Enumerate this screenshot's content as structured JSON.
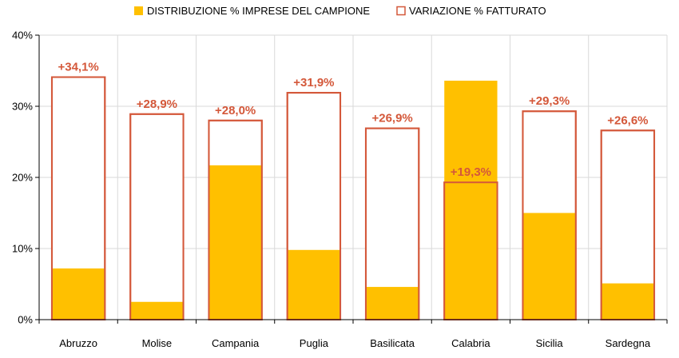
{
  "chart_data": {
    "type": "bar",
    "categories": [
      "Abruzzo",
      "Molise",
      "Campania",
      "Puglia",
      "Basilicata",
      "Calabria",
      "Sicilia",
      "Sardegna"
    ],
    "series": [
      {
        "name": "DISTRIBUZIONE % IMPRESE DEL CAMPIONE",
        "values": [
          7.2,
          2.5,
          21.7,
          9.8,
          4.6,
          33.6,
          15.0,
          5.1
        ],
        "color": "#FFC000"
      },
      {
        "name": "VARIAZIONE % FATTURATO",
        "values": [
          34.1,
          28.9,
          28.0,
          31.9,
          26.9,
          19.3,
          29.3,
          26.6
        ],
        "labels": [
          "+34,1%",
          "+28,9%",
          "+28,0%",
          "+31,9%",
          "+26,9%",
          "+19,3%",
          "+29,3%",
          "+26,6%"
        ],
        "color": "#D4583A"
      }
    ],
    "ylim": [
      0,
      40
    ],
    "yticks": [
      0,
      10,
      20,
      30,
      40
    ],
    "ytick_labels": [
      "0%",
      "10%",
      "20%",
      "30%",
      "40%"
    ],
    "grid": true,
    "legend_position": "top-center"
  }
}
